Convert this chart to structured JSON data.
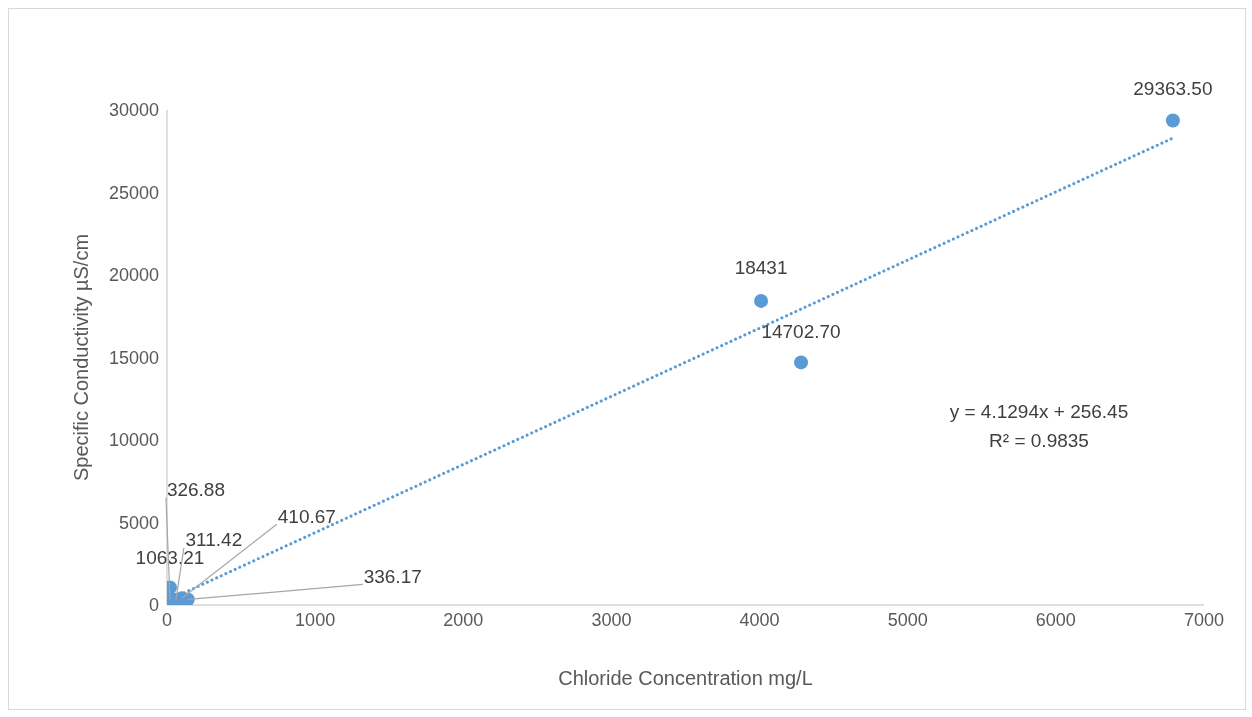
{
  "chart_data": {
    "type": "scatter",
    "xlabel": "Chloride Concentration mg/L",
    "ylabel": "Specific Conductivity µS/cm",
    "xlim": [
      0,
      7000
    ],
    "xticks": [
      0,
      1000,
      2000,
      3000,
      4000,
      5000,
      6000,
      7000
    ],
    "ylim": [
      0,
      30000
    ],
    "yticks": [
      0,
      5000,
      10000,
      15000,
      20000,
      25000,
      30000
    ],
    "grid": false,
    "legend": false,
    "marker": "circle",
    "series": [
      {
        "color": "#5b9bd5",
        "x": [
          20,
          20,
          60,
          100,
          140,
          4010,
          4280,
          6790
        ],
        "values": [
          1063.21,
          326.88,
          311.42,
          410.67,
          336.17,
          18431,
          14702.7,
          29363.5
        ],
        "value_labels": [
          "1063.21",
          "326.88",
          "311.42",
          "410.67",
          "336.17",
          "18431",
          "14702.70",
          "29363.50"
        ]
      },
      {
        "type": "line",
        "color": "#5b9bd5",
        "line_style": "dotted",
        "marker": "none",
        "x": [
          22,
          6790
        ],
        "values": [
          350,
          28300
        ]
      }
    ],
    "annotations": [
      "y = 4.1294x + 256.45",
      "R² = 0.9835"
    ]
  }
}
